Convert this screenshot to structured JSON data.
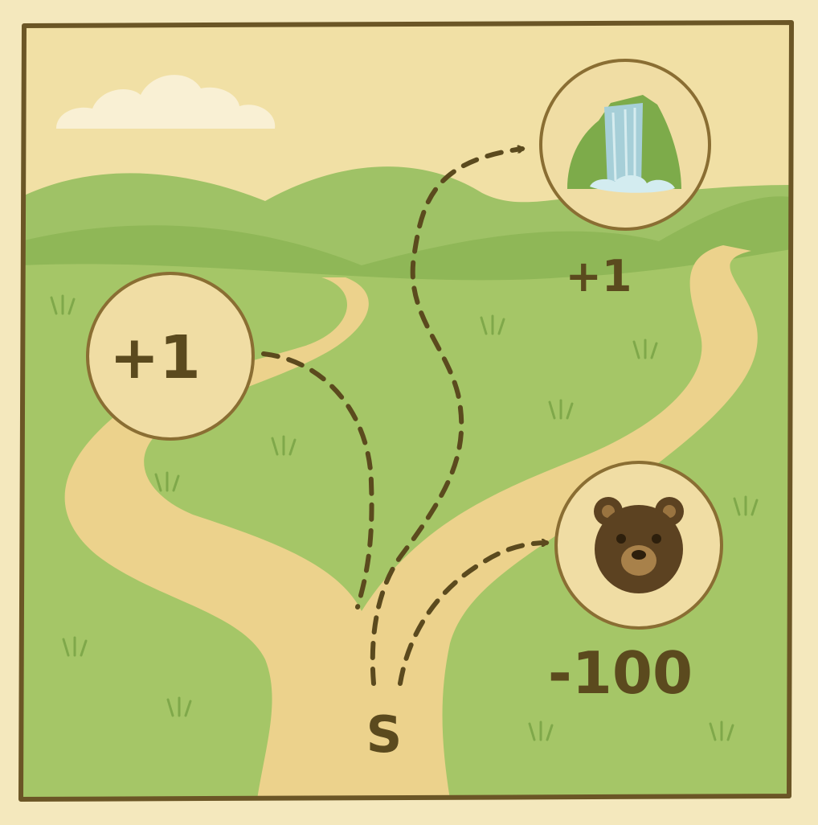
{
  "map": {
    "start": {
      "label": "S"
    },
    "rewards": [
      {
        "id": "reward-left",
        "value": "+1",
        "icon": "none"
      },
      {
        "id": "reward-waterfall",
        "value": "+1",
        "icon": "waterfall-icon"
      },
      {
        "id": "reward-bear",
        "value": "-100",
        "icon": "bear-icon"
      }
    ]
  },
  "colors": {
    "parchment": "#f3e6b8",
    "frame": "#6b5626",
    "grass": "#a2c464",
    "hill": "#8fb757",
    "path": "#ecd28c",
    "text": "#5b4a1e"
  }
}
